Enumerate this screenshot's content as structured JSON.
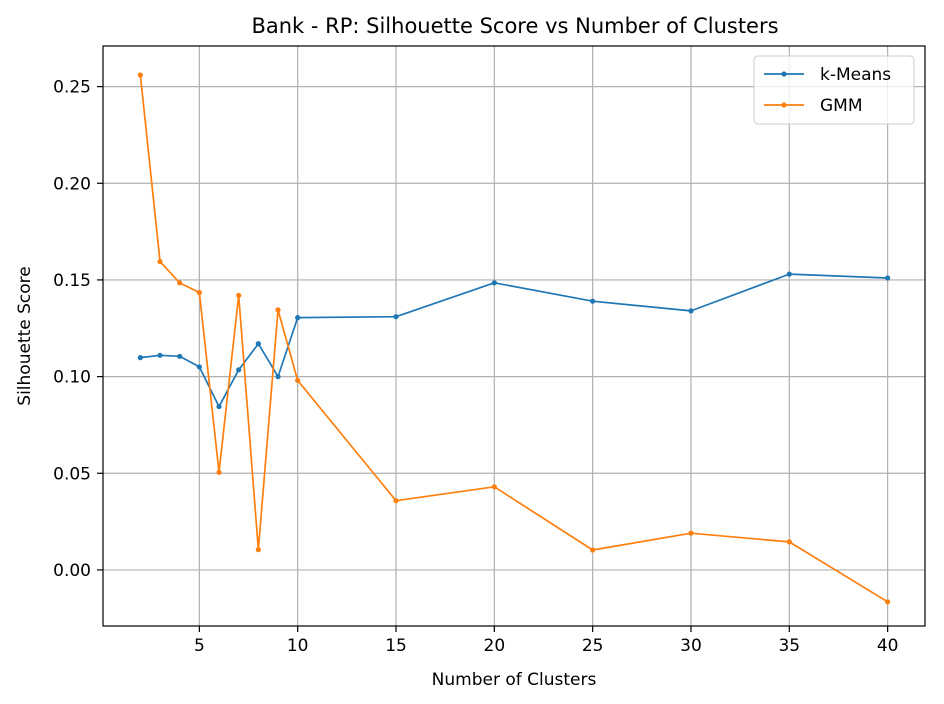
{
  "chart_data": {
    "type": "line",
    "title": "Bank - RP: Silhouette Score vs Number of Clusters",
    "xlabel": "Number of Clusters",
    "ylabel": "Silhouette Score",
    "xlim": [
      0.1,
      41.9
    ],
    "ylim": [
      -0.029,
      0.271
    ],
    "xticks": [
      5,
      10,
      15,
      20,
      25,
      30,
      35,
      40
    ],
    "yticks": [
      0.0,
      0.05,
      0.1,
      0.15,
      0.2,
      0.25
    ],
    "ytick_labels": [
      "0.00",
      "0.05",
      "0.10",
      "0.15",
      "0.20",
      "0.25"
    ],
    "grid": true,
    "legend_position": "top-right",
    "series": [
      {
        "name": "k-Means",
        "color": "#1f77b4",
        "x": [
          2,
          3,
          4,
          5,
          6,
          7,
          8,
          9,
          10,
          15,
          20,
          25,
          30,
          35,
          40
        ],
        "y": [
          0.1098,
          0.111,
          0.1105,
          0.105,
          0.0845,
          0.1035,
          0.117,
          0.1,
          0.1305,
          0.131,
          0.1485,
          0.139,
          0.134,
          0.153,
          0.151
        ]
      },
      {
        "name": "GMM",
        "color": "#ff7f0e",
        "x": [
          2,
          3,
          4,
          5,
          6,
          7,
          8,
          9,
          10,
          15,
          20,
          25,
          30,
          35,
          40
        ],
        "y": [
          0.256,
          0.1595,
          0.1485,
          0.1435,
          0.0505,
          0.142,
          0.0105,
          0.1345,
          0.098,
          0.0358,
          0.043,
          0.0103,
          0.019,
          0.0145,
          -0.0165
        ]
      }
    ]
  }
}
